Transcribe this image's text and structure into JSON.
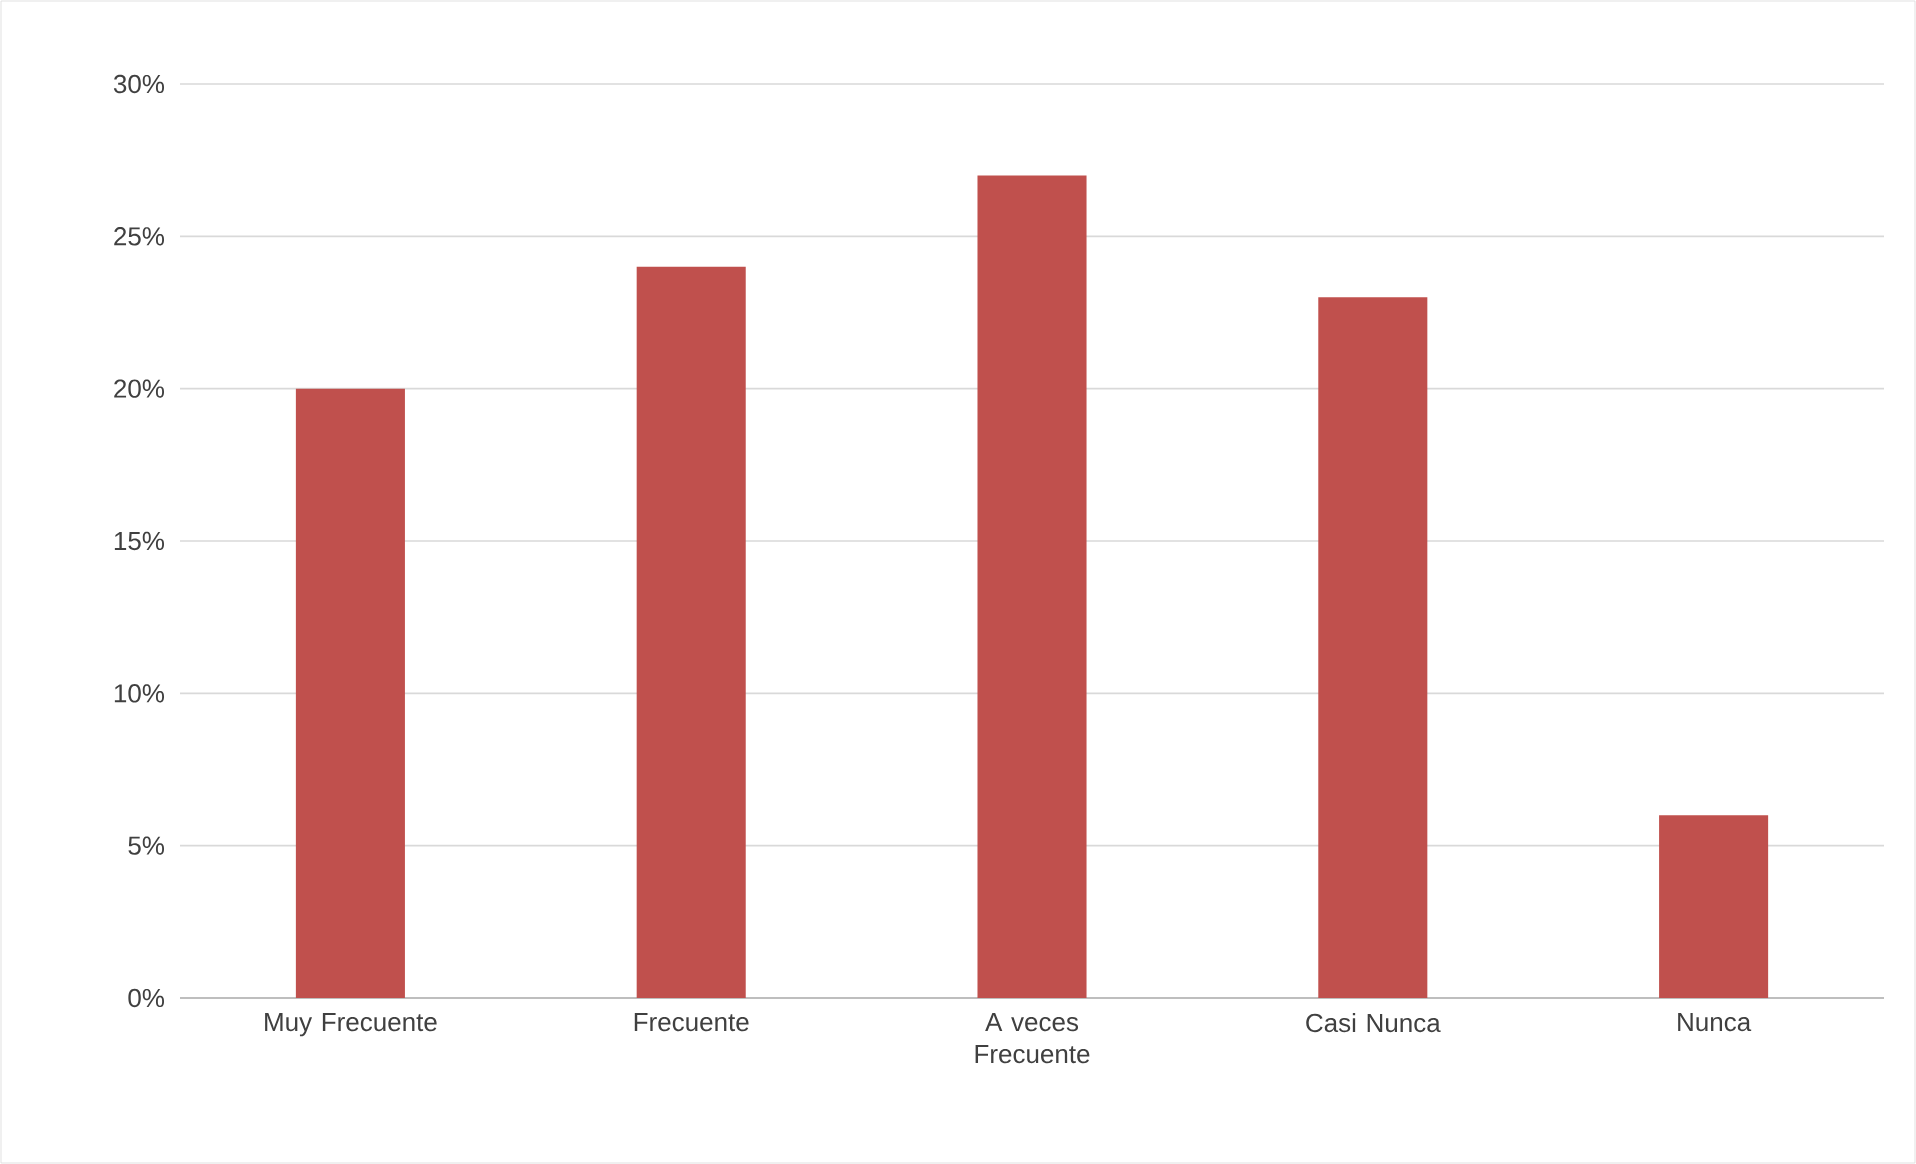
{
  "chart_data": {
    "type": "bar",
    "categories": [
      "Muy Frecuente",
      "Frecuente",
      "A veces Frecuente",
      "Casi Nunca",
      "Nunca"
    ],
    "values": [
      20,
      24,
      27,
      23,
      6
    ],
    "color": "#c0504d",
    "ylim": [
      0,
      30
    ],
    "yticks": [
      {
        "value": 0,
        "label": "0%"
      },
      {
        "value": 5,
        "label": "5%"
      },
      {
        "value": 10,
        "label": "10%"
      },
      {
        "value": 15,
        "label": "15%"
      },
      {
        "value": 20,
        "label": "20%"
      },
      {
        "value": 25,
        "label": "25%"
      },
      {
        "value": 30,
        "label": "30%"
      }
    ],
    "grid": "y"
  }
}
